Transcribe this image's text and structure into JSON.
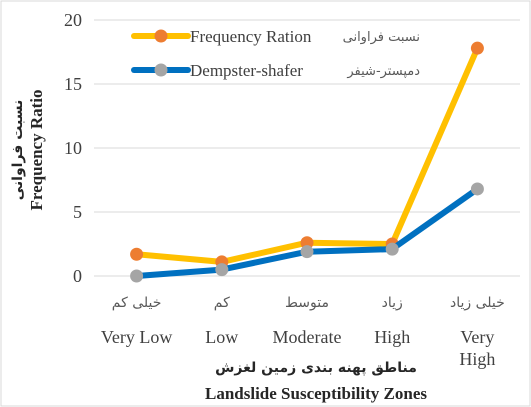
{
  "chart_data": {
    "type": "line",
    "categories": [
      {
        "fa": "خیلی کم",
        "en": "Very Low"
      },
      {
        "fa": "کم",
        "en": "Low"
      },
      {
        "fa": "متوسط",
        "en": "Moderate"
      },
      {
        "fa": "زیاد",
        "en": "High"
      },
      {
        "fa": "خیلی زیاد",
        "en": "Very High"
      }
    ],
    "series": [
      {
        "name": "Frequency Ration",
        "name_fa": "نسبت فراوانی",
        "color": "#FFC000",
        "marker_color": "#ED7D31",
        "values": [
          1.7,
          1.1,
          2.6,
          2.5,
          17.8
        ]
      },
      {
        "name": "Dempster-shafer",
        "name_fa": "دمپستر-شیفر",
        "color": "#0070C0",
        "marker_color": "#A5A5A5",
        "values": [
          0.0,
          0.5,
          1.9,
          2.1,
          6.8
        ]
      }
    ],
    "yticks": [
      0,
      5,
      10,
      15,
      20
    ],
    "ylim": [
      0,
      20
    ],
    "xlabel": "Landslide Susceptibility Zones",
    "xlabel_fa": "مناطق پهنه بندی زمین لغزش",
    "ylabel": "Frequency Ratio",
    "ylabel_fa": "نسبت فراوانی",
    "grid": true,
    "legend_position": "top-left"
  }
}
